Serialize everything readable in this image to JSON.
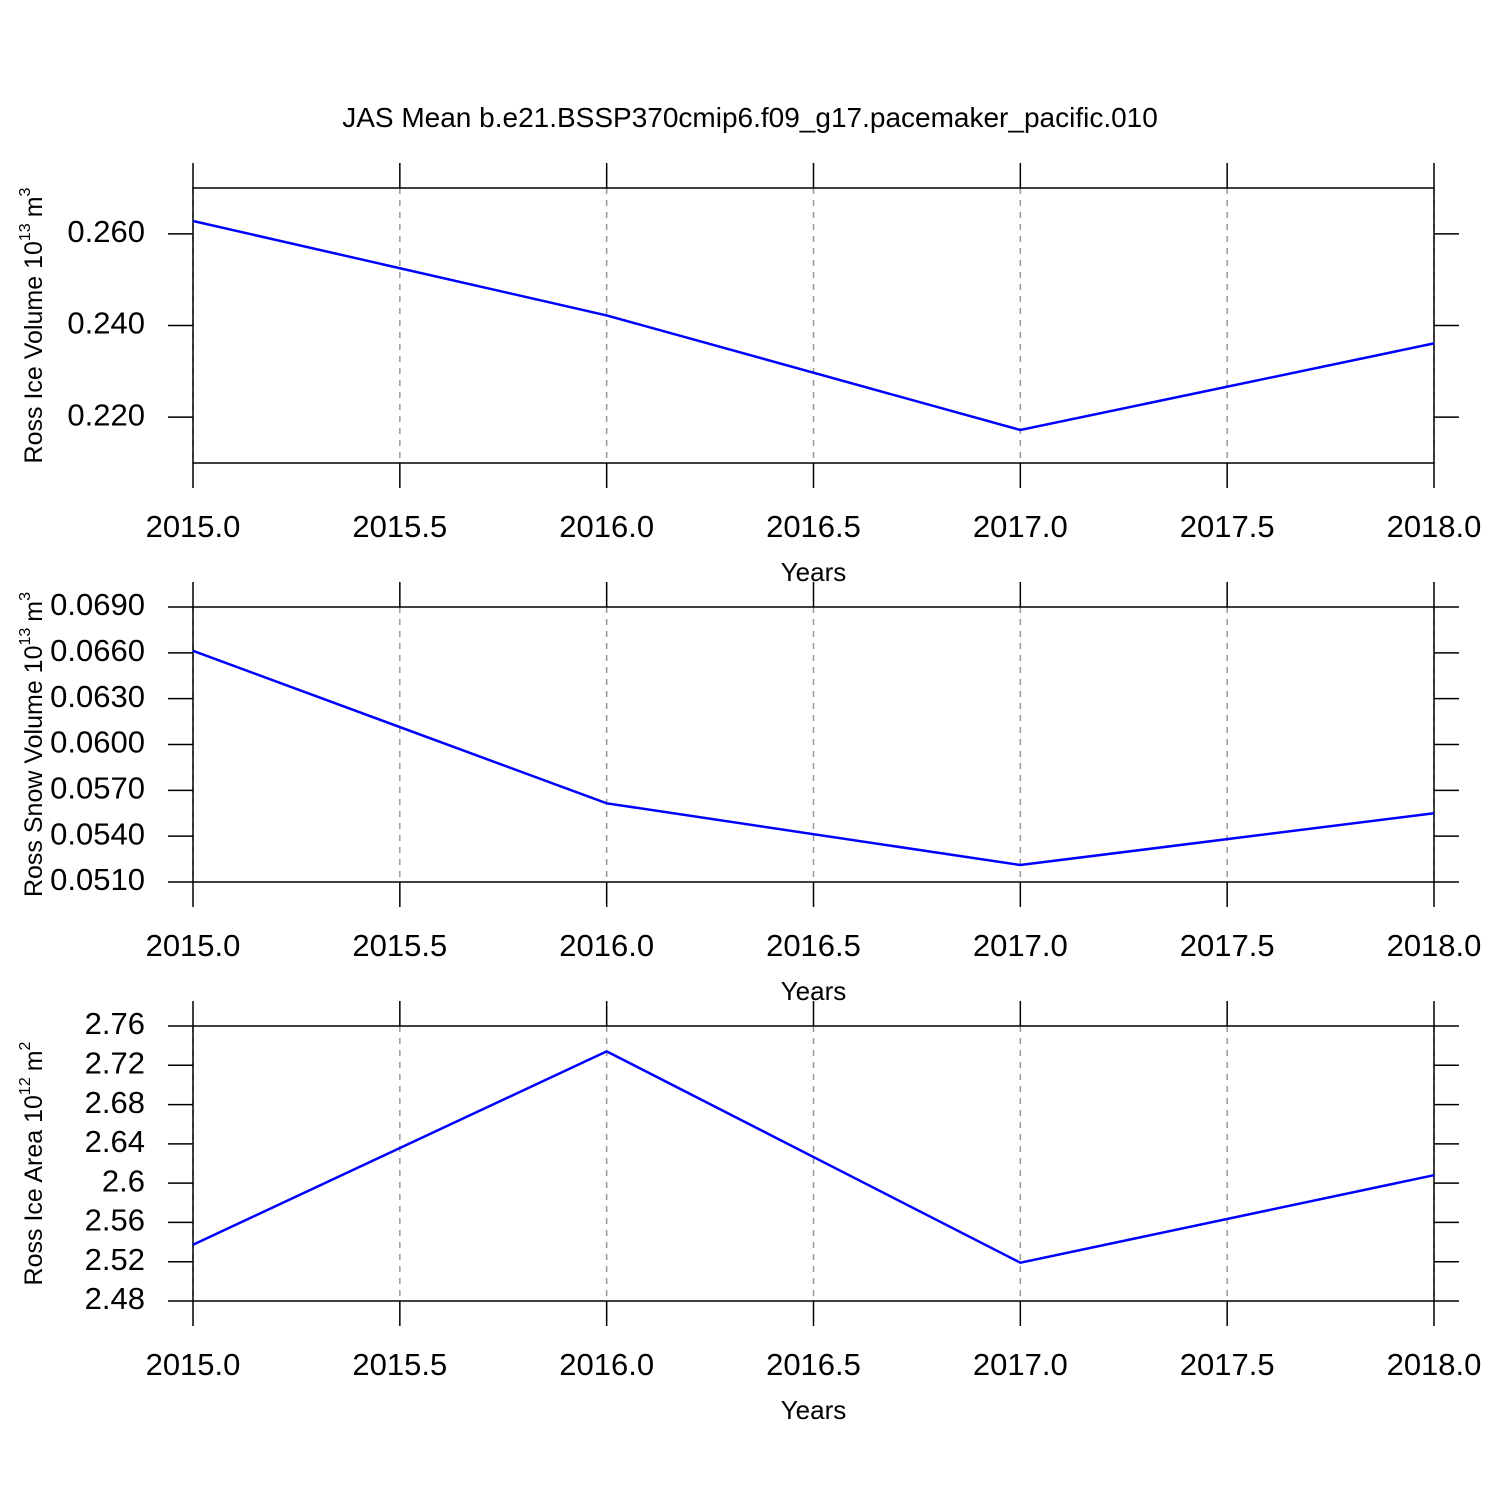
{
  "chart_data": [
    {
      "type": "line",
      "title": "JAS Mean b.e21.BSSP370cmip6.f09_g17.pacemaker_pacific.010",
      "ylabel": [
        "Ross Ice Volume 10",
        "13",
        "m",
        "3"
      ],
      "xlabel": "Years",
      "x": [
        2015,
        2016,
        2017,
        2018
      ],
      "values": [
        0.2628,
        0.2422,
        0.2172,
        0.2361
      ],
      "color": "#0000ff",
      "xlim": [
        2015,
        2018
      ],
      "xticks": [
        {
          "value": 2015,
          "label": "2015.0"
        },
        {
          "value": 2015.5,
          "label": "2015.5"
        },
        {
          "value": 2016,
          "label": "2016.0"
        },
        {
          "value": 2016.5,
          "label": "2016.5"
        },
        {
          "value": 2017,
          "label": "2017.0"
        },
        {
          "value": 2017.5,
          "label": "2017.5"
        },
        {
          "value": 2018,
          "label": "2018.0"
        }
      ],
      "ylim": [
        0.21,
        0.27
      ],
      "yticks": [
        {
          "value": 0.22,
          "label": "0.220"
        },
        {
          "value": 0.24,
          "label": "0.240"
        },
        {
          "value": 0.26,
          "label": "0.260"
        }
      ],
      "xgrid": true
    },
    {
      "type": "line",
      "ylabel": [
        "Ross Snow Volume 10",
        "13",
        "m",
        "3"
      ],
      "xlabel": "Years",
      "x": [
        2015,
        2016,
        2017,
        2018
      ],
      "values": [
        0.06613,
        0.05615,
        0.05211,
        0.0555
      ],
      "color": "#0000ff",
      "xlim": [
        2015,
        2018
      ],
      "xticks": [
        {
          "value": 2015,
          "label": "2015.0"
        },
        {
          "value": 2015.5,
          "label": "2015.5"
        },
        {
          "value": 2016,
          "label": "2016.0"
        },
        {
          "value": 2016.5,
          "label": "2016.5"
        },
        {
          "value": 2017,
          "label": "2017.0"
        },
        {
          "value": 2017.5,
          "label": "2017.5"
        },
        {
          "value": 2018,
          "label": "2018.0"
        }
      ],
      "ylim": [
        0.051,
        0.069
      ],
      "yticks": [
        {
          "value": 0.051,
          "label": "0.0510"
        },
        {
          "value": 0.054,
          "label": "0.0540"
        },
        {
          "value": 0.057,
          "label": "0.0570"
        },
        {
          "value": 0.06,
          "label": "0.0600"
        },
        {
          "value": 0.063,
          "label": "0.0630"
        },
        {
          "value": 0.066,
          "label": "0.0660"
        },
        {
          "value": 0.069,
          "label": "0.0690"
        }
      ],
      "xgrid": true
    },
    {
      "type": "line",
      "ylabel": [
        "Ross Ice Area 10",
        "12",
        "m",
        "2"
      ],
      "xlabel": "Years",
      "x": [
        2015,
        2016,
        2017,
        2018
      ],
      "values": [
        2.5373,
        2.7342,
        2.519,
        2.6081
      ],
      "color": "#0000ff",
      "xlim": [
        2015,
        2018
      ],
      "xticks": [
        {
          "value": 2015,
          "label": "2015.0"
        },
        {
          "value": 2015.5,
          "label": "2015.5"
        },
        {
          "value": 2016,
          "label": "2016.0"
        },
        {
          "value": 2016.5,
          "label": "2016.5"
        },
        {
          "value": 2017,
          "label": "2017.0"
        },
        {
          "value": 2017.5,
          "label": "2017.5"
        },
        {
          "value": 2018,
          "label": "2018.0"
        }
      ],
      "ylim": [
        2.48,
        2.76
      ],
      "yticks": [
        2.48,
        2.52,
        2.56,
        2.6,
        2.64,
        2.68,
        2.72,
        2.76
      ],
      "xgrid": true
    }
  ]
}
